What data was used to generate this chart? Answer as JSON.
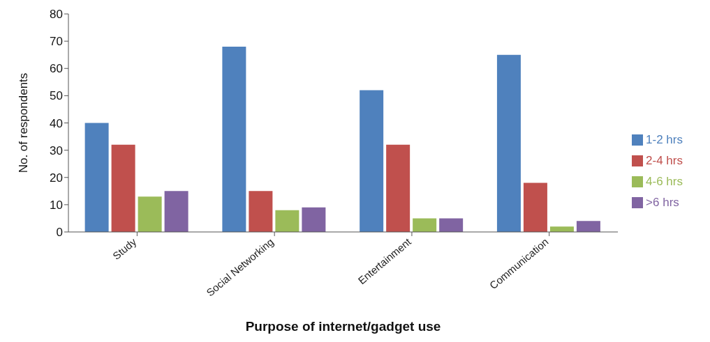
{
  "chart_data": {
    "type": "bar",
    "xlabel": "Purpose of internet/gadget use",
    "ylabel": "No. of respondents",
    "categories": [
      "Study",
      "Social Networking",
      "Entertainment",
      "Communication"
    ],
    "series": [
      {
        "name": "1-2 hrs",
        "color": "#4f81bd",
        "values": [
          40,
          68,
          52,
          65
        ]
      },
      {
        "name": "2-4 hrs",
        "color": "#c0504d",
        "values": [
          32,
          15,
          32,
          18
        ]
      },
      {
        "name": "4-6 hrs",
        "color": "#9bbb59",
        "values": [
          13,
          8,
          5,
          2
        ]
      },
      {
        "name": ">6 hrs",
        "color": "#8064a2",
        "values": [
          15,
          9,
          5,
          4
        ]
      }
    ],
    "ylim": [
      0,
      80
    ],
    "yticks": [
      0,
      10,
      20,
      30,
      40,
      50,
      60,
      70,
      80
    ],
    "grid": false,
    "legend": "right"
  }
}
